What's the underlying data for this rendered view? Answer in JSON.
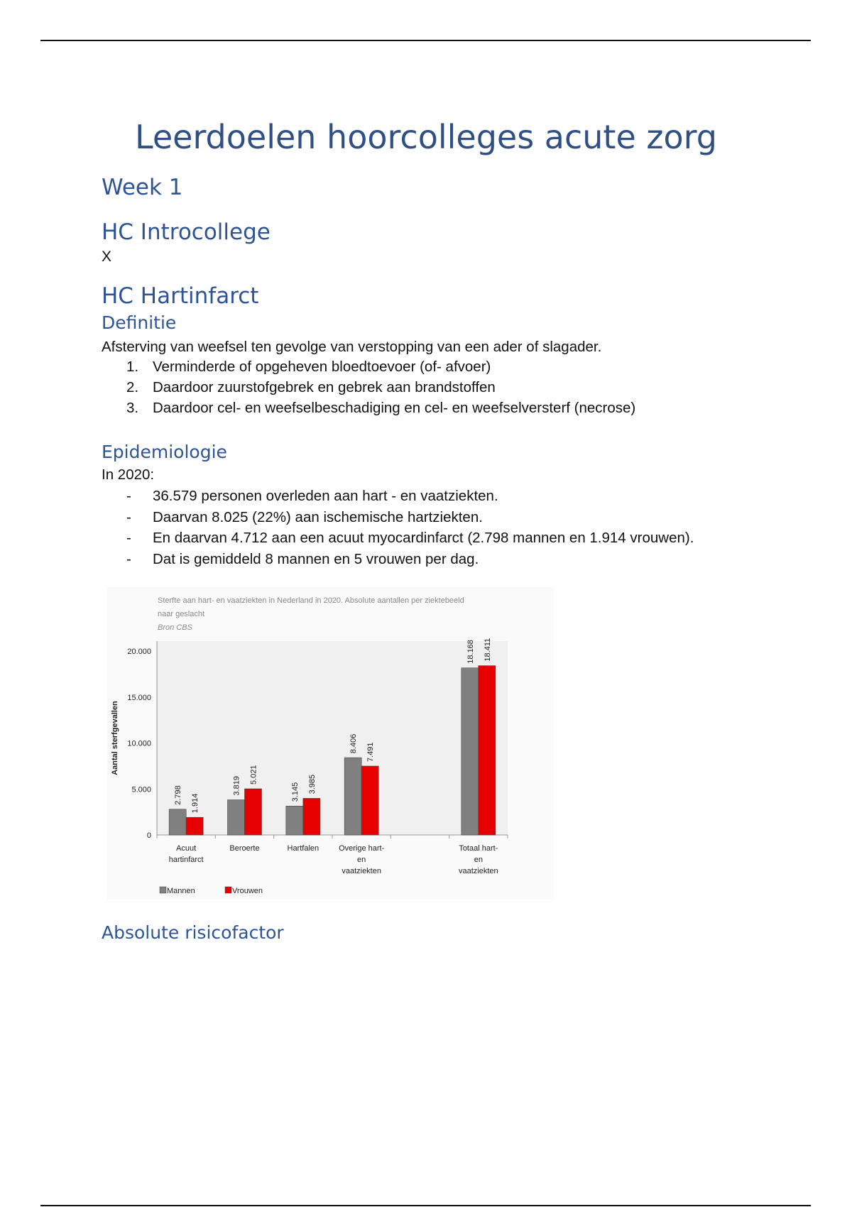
{
  "title": "Leerdoelen hoorcolleges acute zorg",
  "week": "Week 1",
  "intro": {
    "heading": "HC Introcollege",
    "text": "X"
  },
  "hartinfarct": {
    "heading": "HC Hartinfarct",
    "definitie": {
      "heading": "Definitie",
      "text": "Afsterving van weefsel ten gevolge van verstopping van een ader of slagader.",
      "items": [
        {
          "marker": "1.",
          "text": "Verminderde of opgeheven bloedtoevoer (of- afvoer)"
        },
        {
          "marker": "2.",
          "text": "Daardoor zuurstofgebrek en gebrek aan brandstoffen"
        },
        {
          "marker": "3.",
          "text": "Daardoor cel- en weefselbeschadiging en cel- en weefselversterf (necrose)"
        }
      ]
    },
    "epidemiologie": {
      "heading": "Epidemiologie",
      "text": "In 2020:",
      "items": [
        {
          "marker": "-",
          "text": "36.579 personen overleden aan hart - en vaatziekten."
        },
        {
          "marker": "-",
          "text": "Daarvan 8.025 (22%) aan ischemische hartziekten."
        },
        {
          "marker": "-",
          "text": "En daarvan 4.712 aan een acuut myocardinfarct (2.798 mannen en 1.914 vrouwen)."
        },
        {
          "marker": "-",
          "text": "Dat is gemiddeld 8 mannen en 5 vrouwen per dag."
        }
      ]
    },
    "absolute": {
      "heading": "Absolute risicofactor"
    }
  },
  "chart_data": {
    "type": "bar",
    "title": "Sterfte aan hart- en vaatziekten in Nederland in 2020. Absolute aantallen per ziektebeeld",
    "title_line2": "naar geslacht",
    "source": "Bron CBS",
    "ylabel": "Aantal sterfgevallen",
    "xlabel": "",
    "ylim": [
      0,
      20000
    ],
    "yticks": [
      "0",
      "5.000",
      "10.000",
      "15.000",
      "20.000"
    ],
    "ytick_values": [
      0,
      5000,
      10000,
      15000,
      20000
    ],
    "categories": [
      [
        "Acuut",
        "hartinfarct"
      ],
      [
        "Beroerte"
      ],
      [
        "Hartfalen"
      ],
      [
        "Overige hart-",
        "en",
        "vaatziekten"
      ],
      [],
      [
        "Totaal hart-",
        "en",
        "vaatziekten"
      ]
    ],
    "series": [
      {
        "name": "Mannen",
        "color": "#808080",
        "values": [
          2798,
          3819,
          3145,
          8406,
          null,
          18168
        ],
        "labels": [
          "2.798",
          "3.819",
          "3.145",
          "8.406",
          "",
          "18.168"
        ]
      },
      {
        "name": "Vrouwen",
        "color": "#e60000",
        "values": [
          1914,
          5021,
          3985,
          7491,
          null,
          18411
        ],
        "labels": [
          "1.914",
          "5.021",
          "3.985",
          "7.491",
          "",
          "18.411"
        ]
      }
    ],
    "legend": "bottom-left",
    "grid": false
  }
}
